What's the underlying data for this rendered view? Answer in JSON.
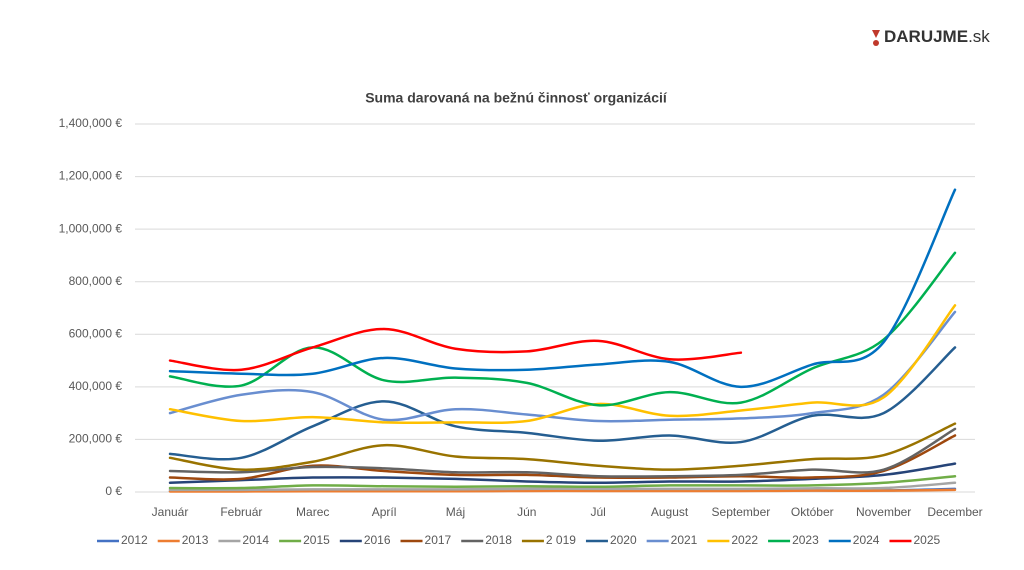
{
  "logo": {
    "brand": "DARUJME",
    "suffix": ".sk"
  },
  "chart_data": {
    "type": "line",
    "title": "Suma darovaná na bežnú činnosť organizácií",
    "categories": [
      "Január",
      "Február",
      "Marec",
      "Apríl",
      "Máj",
      "Jún",
      "Júl",
      "August",
      "September",
      "Október",
      "November",
      "December"
    ],
    "ylim": [
      0,
      1400000
    ],
    "yticks": [
      {
        "value": 0,
        "label": "0 €"
      },
      {
        "value": 200000,
        "label": "200,000 €"
      },
      {
        "value": 400000,
        "label": "400,000 €"
      },
      {
        "value": 600000,
        "label": "600,000 €"
      },
      {
        "value": 800000,
        "label": "800,000 €"
      },
      {
        "value": 1000000,
        "label": "1,000,000 €"
      },
      {
        "value": 1200000,
        "label": "1,200,000 €"
      },
      {
        "value": 1400000,
        "label": "1,400,000 €"
      }
    ],
    "grid": true,
    "legend": "bottom",
    "smooth": true,
    "series": [
      {
        "name": "2012",
        "color": "#4472c4",
        "values": [
          3000,
          3000,
          4000,
          4000,
          4000,
          5000,
          5000,
          5000,
          5000,
          6000,
          6000,
          12000
        ]
      },
      {
        "name": "2013",
        "color": "#ed7d31",
        "values": [
          2000,
          2000,
          3000,
          3000,
          3000,
          4000,
          4000,
          4000,
          4000,
          5000,
          5000,
          8000
        ]
      },
      {
        "name": "2014",
        "color": "#a5a5a5",
        "values": [
          8000,
          8000,
          10000,
          10000,
          10000,
          12000,
          12000,
          12000,
          12000,
          14000,
          15000,
          35000
        ]
      },
      {
        "name": "2015",
        "color": "#70ad47",
        "values": [
          15000,
          15000,
          25000,
          22000,
          20000,
          22000,
          20000,
          25000,
          25000,
          25000,
          35000,
          60000
        ]
      },
      {
        "name": "2016",
        "color": "#264478",
        "values": [
          35000,
          45000,
          55000,
          55000,
          50000,
          40000,
          35000,
          40000,
          40000,
          50000,
          65000,
          108000
        ]
      },
      {
        "name": "2017",
        "color": "#9e480e",
        "values": [
          55000,
          50000,
          100000,
          80000,
          65000,
          65000,
          55000,
          55000,
          60000,
          55000,
          80000,
          215000
        ]
      },
      {
        "name": "2018",
        "color": "#636363",
        "values": [
          80000,
          75000,
          95000,
          90000,
          75000,
          75000,
          60000,
          60000,
          65000,
          85000,
          85000,
          240000
        ]
      },
      {
        "name": "2 019",
        "color": "#997300",
        "values": [
          130000,
          85000,
          115000,
          178000,
          135000,
          125000,
          100000,
          85000,
          100000,
          125000,
          140000,
          260000
        ]
      },
      {
        "name": "2020",
        "color": "#255e91",
        "values": [
          145000,
          130000,
          250000,
          345000,
          250000,
          225000,
          195000,
          215000,
          190000,
          290000,
          300000,
          550000
        ]
      },
      {
        "name": "2021",
        "color": "#698ed0",
        "values": [
          300000,
          370000,
          380000,
          275000,
          315000,
          295000,
          270000,
          275000,
          280000,
          300000,
          370000,
          685000
        ]
      },
      {
        "name": "2022",
        "color": "#ffc000",
        "values": [
          315000,
          270000,
          285000,
          265000,
          265000,
          270000,
          335000,
          290000,
          310000,
          340000,
          360000,
          710000
        ]
      },
      {
        "name": "2023",
        "color": "#00b050",
        "values": [
          440000,
          405000,
          550000,
          425000,
          435000,
          415000,
          330000,
          380000,
          340000,
          470000,
          580000,
          910000
        ]
      },
      {
        "name": "2024",
        "color": "#0070c0",
        "values": [
          460000,
          450000,
          450000,
          510000,
          470000,
          465000,
          485000,
          495000,
          400000,
          485000,
          570000,
          1150000
        ]
      },
      {
        "name": "2025",
        "color": "#ff0000",
        "values": [
          500000,
          465000,
          550000,
          620000,
          545000,
          535000,
          575000,
          505000,
          530000,
          null,
          null,
          null
        ]
      }
    ]
  }
}
